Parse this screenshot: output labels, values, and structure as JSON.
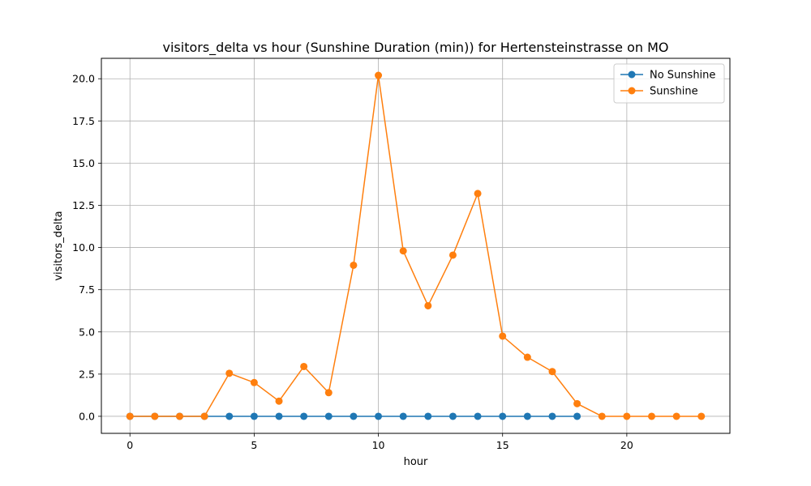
{
  "chart_data": {
    "type": "line",
    "title": "visitors_delta vs hour (Sunshine Duration (min)) for Hertensteinstrasse on MO",
    "xlabel": "hour",
    "ylabel": "visitors_delta",
    "xlim": [
      -1.15,
      24.15
    ],
    "ylim": [
      -1.01,
      21.21
    ],
    "xticks": [
      0,
      5,
      10,
      15,
      20
    ],
    "yticks": [
      0.0,
      2.5,
      5.0,
      7.5,
      10.0,
      12.5,
      15.0,
      17.5,
      20.0
    ],
    "xtick_labels": [
      "0",
      "5",
      "10",
      "15",
      "20"
    ],
    "ytick_labels": [
      "0.0",
      "2.5",
      "5.0",
      "7.5",
      "10.0",
      "12.5",
      "15.0",
      "17.5",
      "20.0"
    ],
    "grid": true,
    "legend_position": "top-right",
    "series": [
      {
        "name": "No Sunshine",
        "color": "#1f77b4",
        "x": [
          0,
          1,
          2,
          3,
          4,
          5,
          6,
          7,
          8,
          9,
          10,
          11,
          12,
          13,
          14,
          15,
          16,
          17,
          18
        ],
        "y": [
          0,
          0,
          0,
          0,
          0,
          0,
          0,
          0,
          0,
          0,
          0,
          0,
          0,
          0,
          0,
          0,
          0,
          0,
          0
        ]
      },
      {
        "name": "Sunshine",
        "color": "#ff7f0e",
        "x": [
          0,
          1,
          2,
          3,
          4,
          5,
          6,
          7,
          8,
          9,
          10,
          11,
          12,
          13,
          14,
          15,
          16,
          17,
          18,
          19,
          20,
          21,
          22,
          23
        ],
        "y": [
          0,
          0,
          0,
          0,
          2.55,
          2.0,
          0.9,
          2.95,
          1.4,
          8.95,
          20.2,
          9.8,
          6.55,
          9.55,
          13.2,
          4.75,
          3.5,
          2.65,
          0.75,
          0,
          0,
          0,
          0,
          0
        ]
      }
    ]
  }
}
